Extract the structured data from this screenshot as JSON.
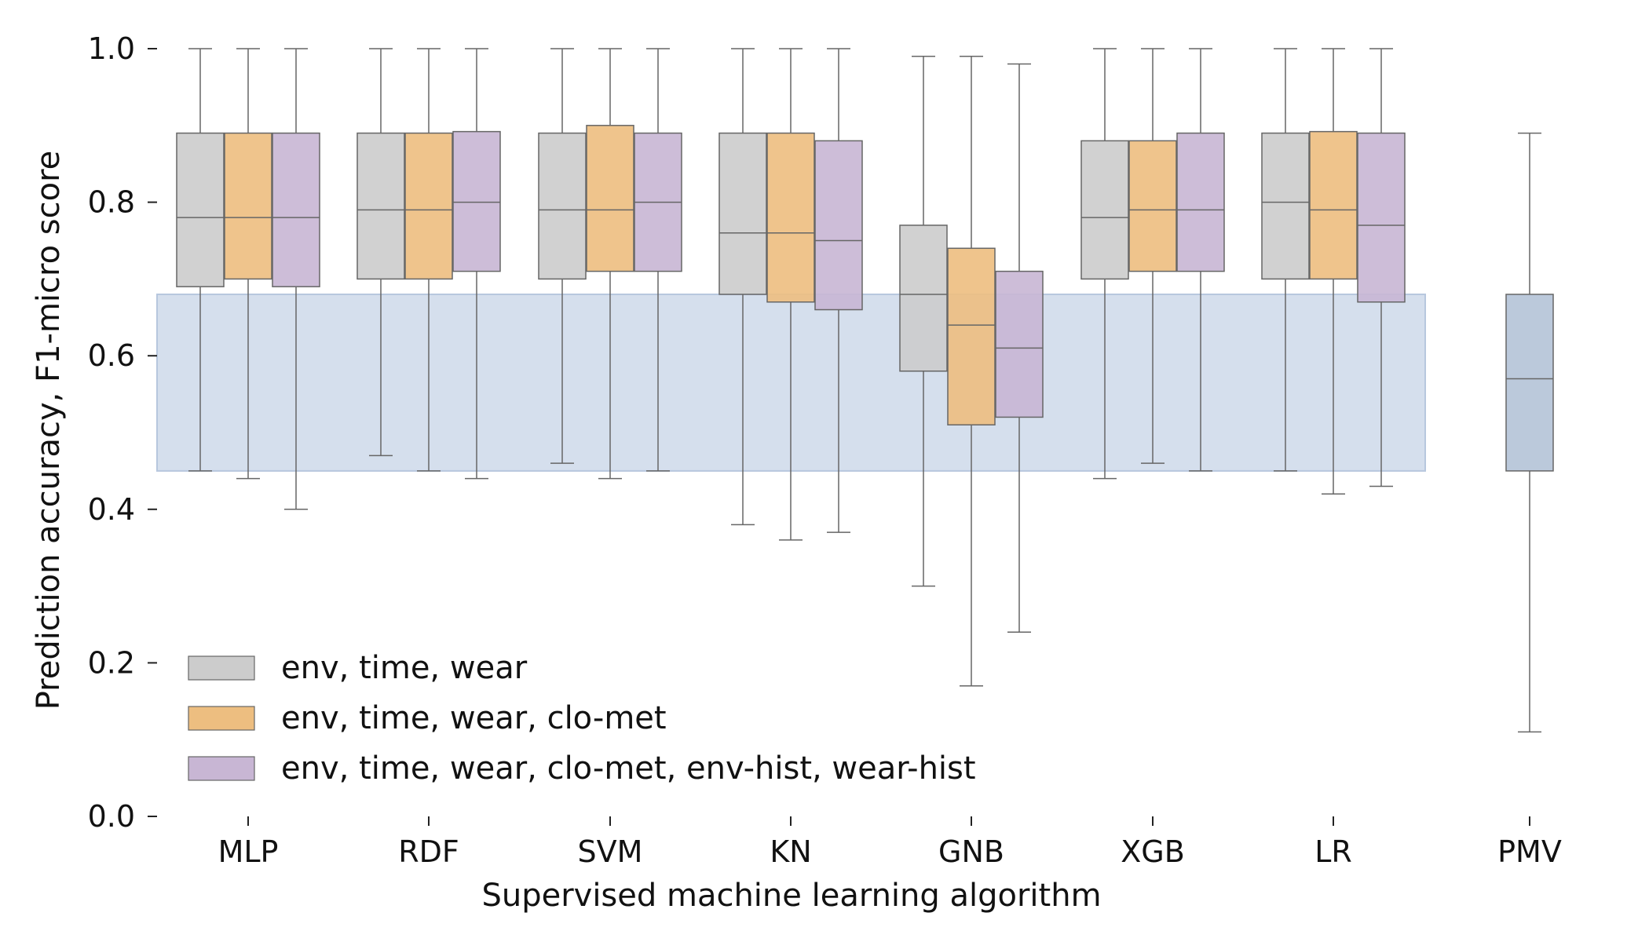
{
  "chart_data": {
    "type": "box",
    "title": "",
    "xlabel": "Supervised machine learning algorithm",
    "ylabel": "Prediction accuracy, F1-micro score",
    "ylim": [
      0.0,
      1.0
    ],
    "yticks": [
      "0.0",
      "0.2",
      "0.4",
      "0.6",
      "0.8",
      "1.0"
    ],
    "categories": [
      "MLP",
      "RDF",
      "SVM",
      "KN",
      "GNB",
      "XGB",
      "LR",
      "PMV"
    ],
    "legend_position": "lower-left",
    "grid": false,
    "pmv_band": {
      "lower": 0.45,
      "upper": 0.68,
      "color": "#c5d3e6"
    },
    "series": [
      {
        "name": "env, time, wear",
        "color": "#cccccc",
        "boxes": [
          {
            "category": "MLP",
            "whislo": 0.45,
            "q1": 0.69,
            "med": 0.78,
            "q3": 0.89,
            "whishi": 1.0
          },
          {
            "category": "RDF",
            "whislo": 0.47,
            "q1": 0.7,
            "med": 0.79,
            "q3": 0.89,
            "whishi": 1.0
          },
          {
            "category": "SVM",
            "whislo": 0.46,
            "q1": 0.7,
            "med": 0.79,
            "q3": 0.89,
            "whishi": 1.0
          },
          {
            "category": "KN",
            "whislo": 0.38,
            "q1": 0.68,
            "med": 0.76,
            "q3": 0.89,
            "whishi": 1.0
          },
          {
            "category": "GNB",
            "whislo": 0.3,
            "q1": 0.58,
            "med": 0.68,
            "q3": 0.77,
            "whishi": 0.99
          },
          {
            "category": "XGB",
            "whislo": 0.44,
            "q1": 0.7,
            "med": 0.78,
            "q3": 0.88,
            "whishi": 1.0
          },
          {
            "category": "LR",
            "whislo": 0.45,
            "q1": 0.7,
            "med": 0.8,
            "q3": 0.89,
            "whishi": 1.0
          }
        ]
      },
      {
        "name": "env, time, wear, clo-met",
        "color": "#edbe80",
        "boxes": [
          {
            "category": "MLP",
            "whislo": 0.44,
            "q1": 0.7,
            "med": 0.78,
            "q3": 0.89,
            "whishi": 1.0
          },
          {
            "category": "RDF",
            "whislo": 0.45,
            "q1": 0.7,
            "med": 0.79,
            "q3": 0.89,
            "whishi": 1.0
          },
          {
            "category": "SVM",
            "whislo": 0.44,
            "q1": 0.71,
            "med": 0.79,
            "q3": 0.9,
            "whishi": 1.0
          },
          {
            "category": "KN",
            "whislo": 0.36,
            "q1": 0.67,
            "med": 0.76,
            "q3": 0.89,
            "whishi": 1.0
          },
          {
            "category": "GNB",
            "whislo": 0.17,
            "q1": 0.51,
            "med": 0.64,
            "q3": 0.74,
            "whishi": 0.99
          },
          {
            "category": "XGB",
            "whislo": 0.46,
            "q1": 0.71,
            "med": 0.79,
            "q3": 0.88,
            "whishi": 1.0
          },
          {
            "category": "LR",
            "whislo": 0.42,
            "q1": 0.7,
            "med": 0.79,
            "q3": 0.892,
            "whishi": 1.0
          }
        ]
      },
      {
        "name": "env, time, wear, clo-met, env-hist, wear-hist",
        "color": "#c8b6d4",
        "boxes": [
          {
            "category": "MLP",
            "whislo": 0.4,
            "q1": 0.69,
            "med": 0.78,
            "q3": 0.89,
            "whishi": 1.0
          },
          {
            "category": "RDF",
            "whislo": 0.44,
            "q1": 0.71,
            "med": 0.8,
            "q3": 0.892,
            "whishi": 1.0
          },
          {
            "category": "SVM",
            "whislo": 0.45,
            "q1": 0.71,
            "med": 0.8,
            "q3": 0.89,
            "whishi": 1.0
          },
          {
            "category": "KN",
            "whislo": 0.37,
            "q1": 0.66,
            "med": 0.75,
            "q3": 0.88,
            "whishi": 1.0
          },
          {
            "category": "GNB",
            "whislo": 0.24,
            "q1": 0.52,
            "med": 0.61,
            "q3": 0.71,
            "whishi": 0.98
          },
          {
            "category": "XGB",
            "whislo": 0.45,
            "q1": 0.71,
            "med": 0.79,
            "q3": 0.89,
            "whishi": 1.0
          },
          {
            "category": "LR",
            "whislo": 0.43,
            "q1": 0.67,
            "med": 0.77,
            "q3": 0.89,
            "whishi": 1.0
          }
        ]
      }
    ],
    "pmv_box": {
      "category": "PMV",
      "color": "#b4c3d7",
      "whislo": 0.11,
      "q1": 0.45,
      "med": 0.57,
      "q3": 0.68,
      "whishi": 0.89
    }
  }
}
